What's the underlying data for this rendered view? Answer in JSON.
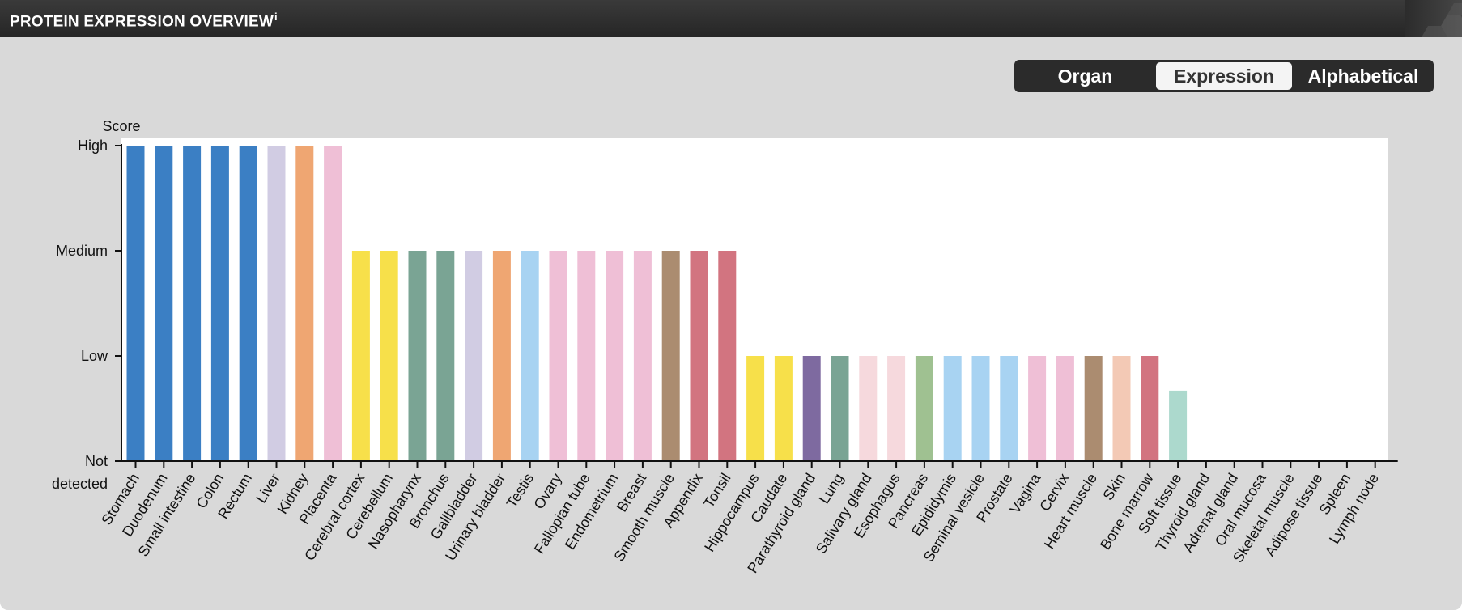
{
  "header": {
    "title": "PROTEIN EXPRESSION OVERVIEW",
    "info": "i"
  },
  "sort_toggle": {
    "options": [
      "Organ",
      "Expression",
      "Alphabetical"
    ],
    "selected": "Expression"
  },
  "chart_data": {
    "type": "bar",
    "ylabel": "Score",
    "y_levels": [
      "Not detected",
      "Low",
      "Medium",
      "High"
    ],
    "ylim": [
      0,
      3
    ],
    "categories": [
      "Stomach",
      "Duodenum",
      "Small intestine",
      "Colon",
      "Rectum",
      "Liver",
      "Kidney",
      "Placenta",
      "Cerebral cortex",
      "Cerebellum",
      "Nasopharynx",
      "Bronchus",
      "Gallbladder",
      "Urinary bladder",
      "Testis",
      "Ovary",
      "Fallopian tube",
      "Endometrium",
      "Breast",
      "Smooth muscle",
      "Appendix",
      "Tonsil",
      "Hippocampus",
      "Caudate",
      "Parathyroid gland",
      "Lung",
      "Salivary gland",
      "Esophagus",
      "Pancreas",
      "Epididymis",
      "Seminal vesicle",
      "Prostate",
      "Vagina",
      "Cervix",
      "Heart muscle",
      "Skin",
      "Bone marrow",
      "Soft tissue",
      "Thyroid gland",
      "Adrenal gland",
      "Oral mucosa",
      "Skeletal muscle",
      "Adipose tissue",
      "Spleen",
      "Lymph node"
    ],
    "values": [
      3,
      3,
      3,
      3,
      3,
      3,
      3,
      3,
      2,
      2,
      2,
      2,
      2,
      2,
      2,
      2,
      2,
      2,
      2,
      2,
      2,
      2,
      1,
      1,
      1,
      1,
      1,
      1,
      1,
      1,
      1,
      1,
      1,
      1,
      1,
      1,
      1,
      0.67,
      0,
      0,
      0,
      0,
      0,
      0,
      0
    ],
    "colors": [
      "#3b7fc4",
      "#3b7fc4",
      "#3b7fc4",
      "#3b7fc4",
      "#3b7fc4",
      "#d1cce3",
      "#efa672",
      "#efbfd6",
      "#f7e04a",
      "#f7e04a",
      "#7aa494",
      "#7aa494",
      "#d1cce3",
      "#efa672",
      "#a8d3f2",
      "#efbfd6",
      "#efbfd6",
      "#efbfd6",
      "#efbfd6",
      "#ab8c70",
      "#d27480",
      "#d27480",
      "#f7e04a",
      "#f7e04a",
      "#7e6aa0",
      "#7aa494",
      "#f6d9dd",
      "#f6d9dd",
      "#9fc191",
      "#a8d3f2",
      "#a8d3f2",
      "#a8d3f2",
      "#efbfd6",
      "#efbfd6",
      "#ab8c70",
      "#f3c9b5",
      "#d27480",
      "#acd9cd",
      "#cccccc",
      "#cccccc",
      "#cccccc",
      "#cccccc",
      "#cccccc",
      "#cccccc",
      "#cccccc"
    ],
    "grid": false,
    "legend": "none"
  }
}
